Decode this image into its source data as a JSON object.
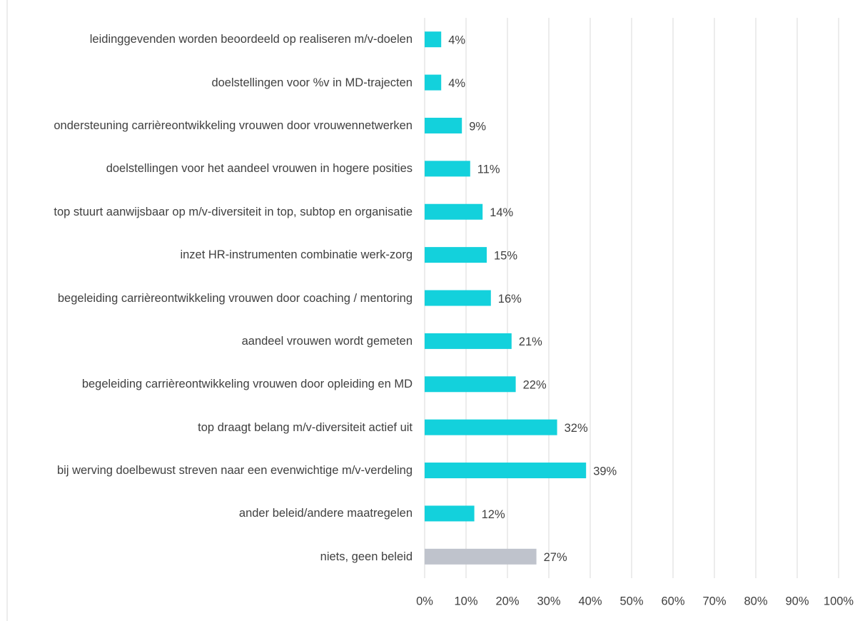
{
  "chart_data": {
    "type": "barh",
    "categories": [
      "leidinggevenden worden beoordeeld op realiseren m/v-doelen",
      "doelstellingen voor %v in MD-trajecten",
      "ondersteuning carrièreontwikkeling vrouwen door vrouwennetwerken",
      "doelstellingen voor het aandeel vrouwen in hogere posities",
      "top stuurt aanwijsbaar op m/v-diversiteit in top, subtop en organisatie",
      "inzet HR-instrumenten combinatie werk-zorg",
      "begeleiding carrièreontwikkeling vrouwen door coaching / mentoring",
      "aandeel vrouwen wordt gemeten",
      "begeleiding carrièreontwikkeling vrouwen door opleiding en MD",
      "top draagt belang m/v-diversiteit actief uit",
      "bij werving doelbewust streven naar een evenwichtige m/v-verdeling",
      "ander beleid/andere maatregelen",
      "niets, geen beleid"
    ],
    "values": [
      4,
      4,
      9,
      11,
      14,
      15,
      16,
      21,
      22,
      32,
      39,
      12,
      27
    ],
    "value_labels": [
      "4%",
      "4%",
      "9%",
      "11%",
      "14%",
      "15%",
      "16%",
      "21%",
      "22%",
      "32%",
      "39%",
      "12%",
      "27%"
    ],
    "colors": [
      "#13d1dc",
      "#13d1dc",
      "#13d1dc",
      "#13d1dc",
      "#13d1dc",
      "#13d1dc",
      "#13d1dc",
      "#13d1dc",
      "#13d1dc",
      "#13d1dc",
      "#13d1dc",
      "#13d1dc",
      "#bfc3cc"
    ],
    "xlim": [
      0,
      100
    ],
    "xticks": [
      {
        "value": 0,
        "label": "0%"
      },
      {
        "value": 10,
        "label": "10%"
      },
      {
        "value": 20,
        "label": "20%"
      },
      {
        "value": 30,
        "label": "30%"
      },
      {
        "value": 40,
        "label": "40%"
      },
      {
        "value": 50,
        "label": "50%"
      },
      {
        "value": 60,
        "label": "60%"
      },
      {
        "value": 70,
        "label": "70%"
      },
      {
        "value": 80,
        "label": "80%"
      },
      {
        "value": 90,
        "label": "90%"
      },
      {
        "value": 100,
        "label": "100%"
      }
    ],
    "grid": true
  }
}
